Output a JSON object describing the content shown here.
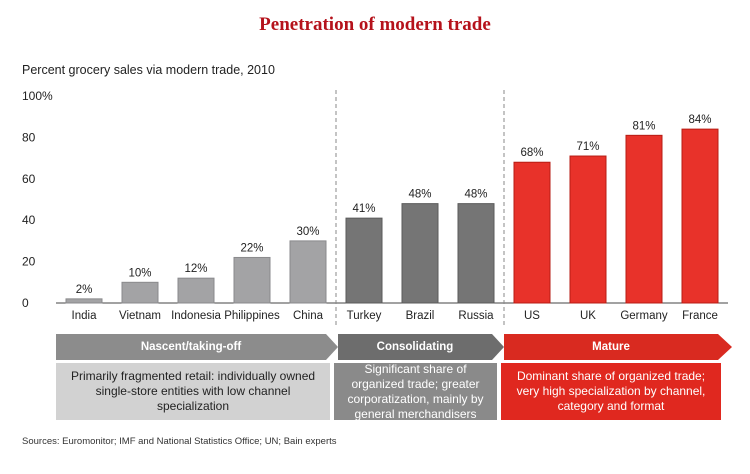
{
  "title": "Penetration of modern trade",
  "subtitle": "Percent grocery sales via modern trade, 2010",
  "sources": "Sources: Euromonitor; IMF and National Statistics Office; UN; Bain experts",
  "stages": [
    {
      "label": "Nascent/taking-off",
      "description": "Primarily fragmented retail: individually owned single-store entities with low channel specialization"
    },
    {
      "label": "Consolidating",
      "description": "Significant share of organized trade; greater corporatization, mainly by general merchandisers"
    },
    {
      "label": "Mature",
      "description": "Dominant share of organized trade; very high specialization by channel, category and format"
    }
  ],
  "colors": {
    "nascent": "#a3a3a5",
    "consolidating": "#757575",
    "mature": "#e8322a",
    "title": "#b5121b"
  },
  "chart_data": {
    "type": "bar",
    "title": "Penetration of modern trade",
    "ylabel": "Percent grocery sales via modern trade, 2010",
    "ylim": [
      0,
      100
    ],
    "yticks": [
      "0",
      "20",
      "40",
      "60",
      "80",
      "100%"
    ],
    "categories": [
      "India",
      "Vietnam",
      "Indonesia",
      "Philippines",
      "China",
      "Turkey",
      "Brazil",
      "Russia",
      "US",
      "UK",
      "Germany",
      "France"
    ],
    "values": [
      2,
      10,
      12,
      22,
      30,
      41,
      48,
      48,
      68,
      71,
      81,
      84
    ],
    "value_labels": [
      "2%",
      "10%",
      "12%",
      "22%",
      "30%",
      "41%",
      "48%",
      "48%",
      "68%",
      "71%",
      "81%",
      "84%"
    ],
    "groups": [
      "nascent",
      "nascent",
      "nascent",
      "nascent",
      "nascent",
      "consolidating",
      "consolidating",
      "consolidating",
      "mature",
      "mature",
      "mature",
      "mature"
    ]
  }
}
